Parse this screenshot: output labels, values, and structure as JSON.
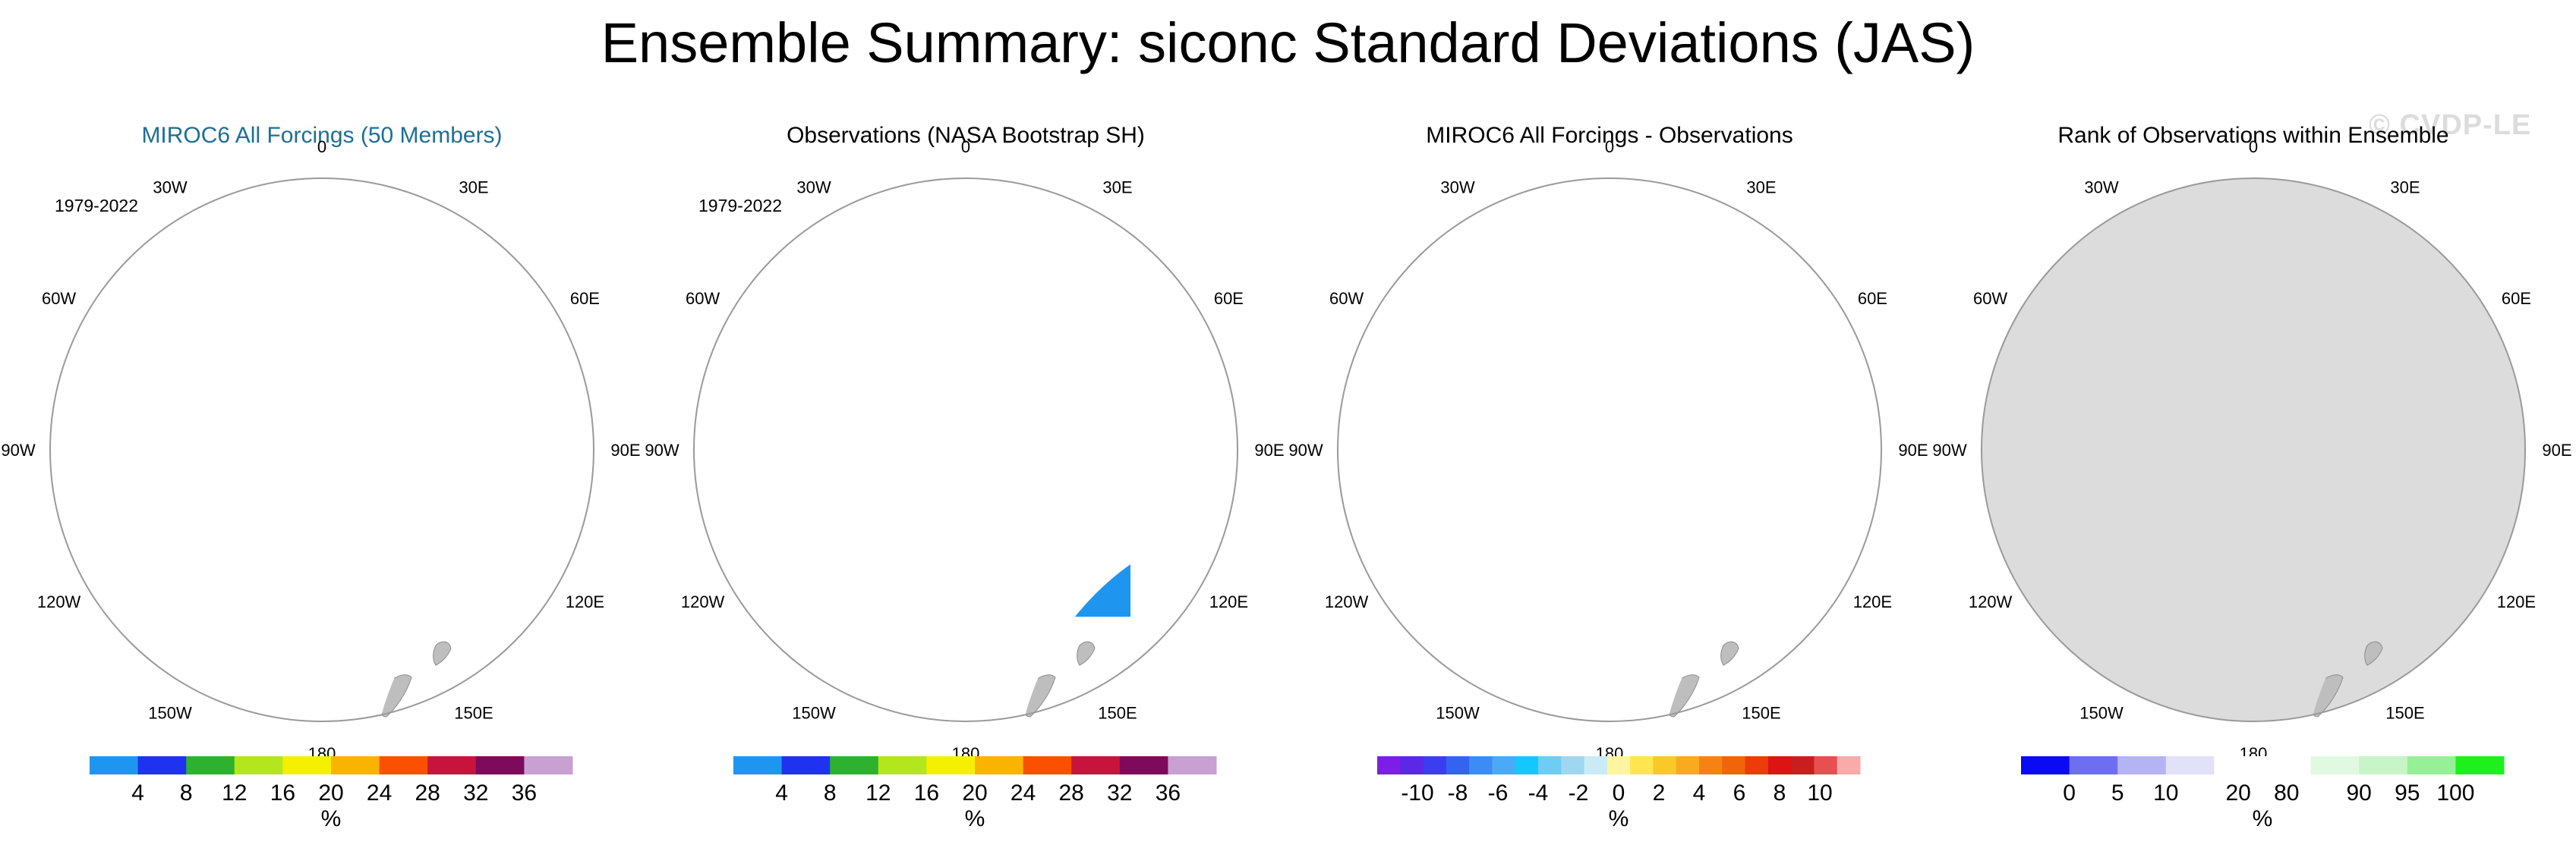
{
  "title": "Ensemble Summary: siconc Standard Deviations (JAS)",
  "watermark": "© CVDP-LE",
  "lon_labels": [
    "0",
    "30E",
    "60E",
    "90E",
    "120E",
    "150E",
    "180",
    "150W",
    "120W",
    "90W",
    "60W",
    "30W"
  ],
  "colors": {
    "ocean": "#ffffff",
    "land": "#bebebe",
    "circle_stroke": "#9a9a9a",
    "title_blue": "#1d6f96"
  },
  "panels": [
    {
      "title": "MIROC6 All Forcings (50 Members)",
      "period": "1979-2022",
      "colorbar": {
        "colors": [
          "#1e96f0",
          "#1e32f0",
          "#2eb12e",
          "#b4e61e",
          "#f5f000",
          "#fab400",
          "#fa5000",
          "#c8143c",
          "#7d0a5a",
          "#c8a0d2"
        ],
        "ticks": [
          "4",
          "8",
          "12",
          "16",
          "20",
          "24",
          "28",
          "32",
          "36"
        ],
        "unit": "%"
      }
    },
    {
      "title": "Observations (NASA Bootstrap SH)",
      "period": "1979-2022",
      "colorbar": {
        "colors": [
          "#1e96f0",
          "#1e32f0",
          "#2eb12e",
          "#b4e61e",
          "#f5f000",
          "#fab400",
          "#fa5000",
          "#c8143c",
          "#7d0a5a",
          "#c8a0d2"
        ],
        "ticks": [
          "4",
          "8",
          "12",
          "16",
          "20",
          "24",
          "28",
          "32",
          "36"
        ],
        "unit": "%"
      }
    },
    {
      "title": "MIROC6 All Forcings - Observations",
      "period": "",
      "colorbar": {
        "colors": [
          "#7d1ee6",
          "#5a28e6",
          "#3c3cf0",
          "#3264f0",
          "#3c8cf5",
          "#4baaf5",
          "#14c8ff",
          "#6ecdf5",
          "#a0d7f0",
          "#c8ebf5",
          "#fff5a0",
          "#ffe650",
          "#fac828",
          "#faaa1e",
          "#f58214",
          "#f0640a",
          "#eb3c0a",
          "#dc1414",
          "#c81e1e",
          "#e65050",
          "#faaaaa"
        ],
        "ticks": [
          "-10",
          "-8",
          "-6",
          "-4",
          "-2",
          "0",
          "2",
          "4",
          "6",
          "8",
          "10"
        ],
        "unit": "%"
      }
    },
    {
      "title": "Rank of Observations within Ensemble",
      "period": "",
      "colorbar": {
        "colors": [
          "#0a0af5",
          "#6e6ef0",
          "#b4b4f5",
          "#e1e1f8",
          "#ffffff",
          "#ffffff",
          "#e1f8e1",
          "#c8f5c8",
          "#96f096",
          "#1ef01e"
        ],
        "ticks": [
          "0",
          "5",
          "10",
          "20",
          "80",
          "90",
          "95",
          "100"
        ],
        "unit": "%"
      }
    }
  ]
}
